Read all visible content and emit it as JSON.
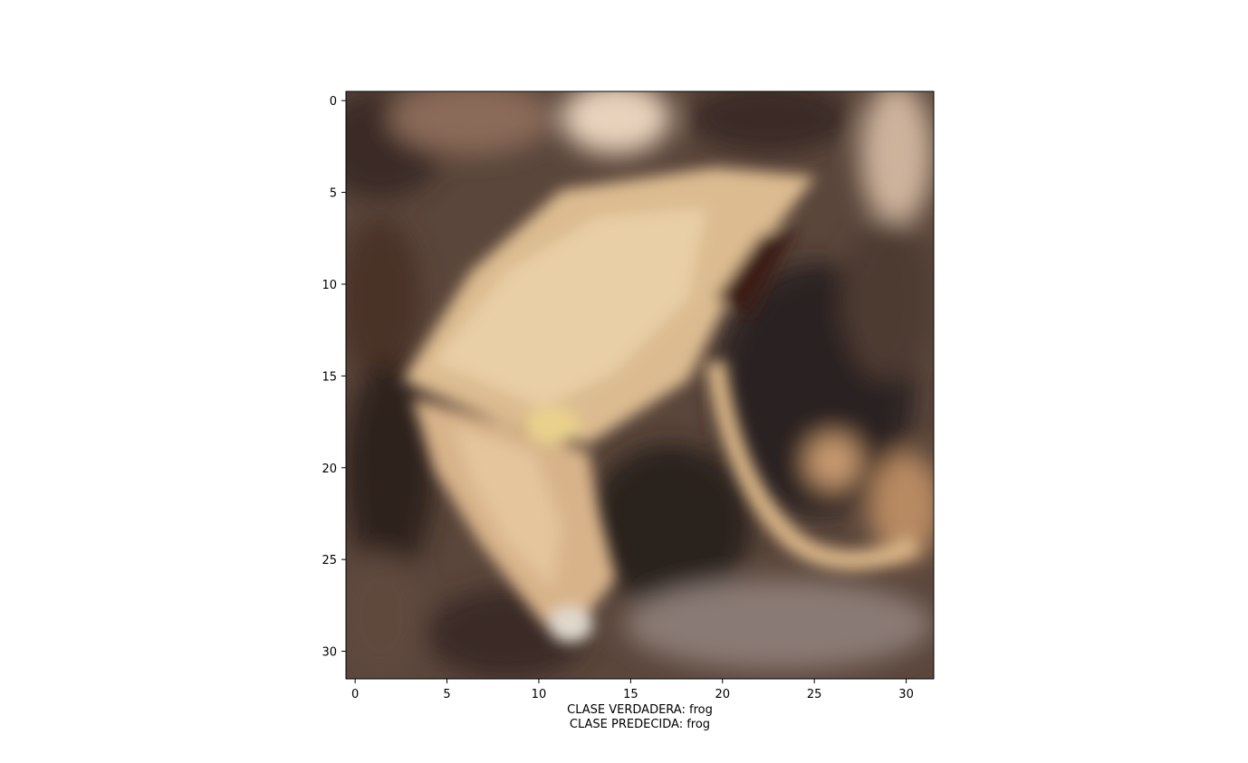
{
  "figure": {
    "image_description": "blurry low-resolution photo of a tan frog on dark brown leaf litter",
    "x_ticks": [
      "0",
      "5",
      "10",
      "15",
      "20",
      "25",
      "30"
    ],
    "y_ticks": [
      "0",
      "5",
      "10",
      "15",
      "20",
      "25",
      "30"
    ],
    "x_range": [
      -0.5,
      31.5
    ],
    "y_range": [
      -0.5,
      31.5
    ],
    "caption": {
      "true_class_line": "CLASE VERDADERA: frog",
      "predicted_class_line": "CLASE PREDECIDA: frog"
    },
    "colors": {
      "frog_light": "#e6c9a0",
      "frog_mid": "#d2aa78",
      "background_dark": "#3a2a22",
      "background_mid": "#6e5848"
    }
  }
}
